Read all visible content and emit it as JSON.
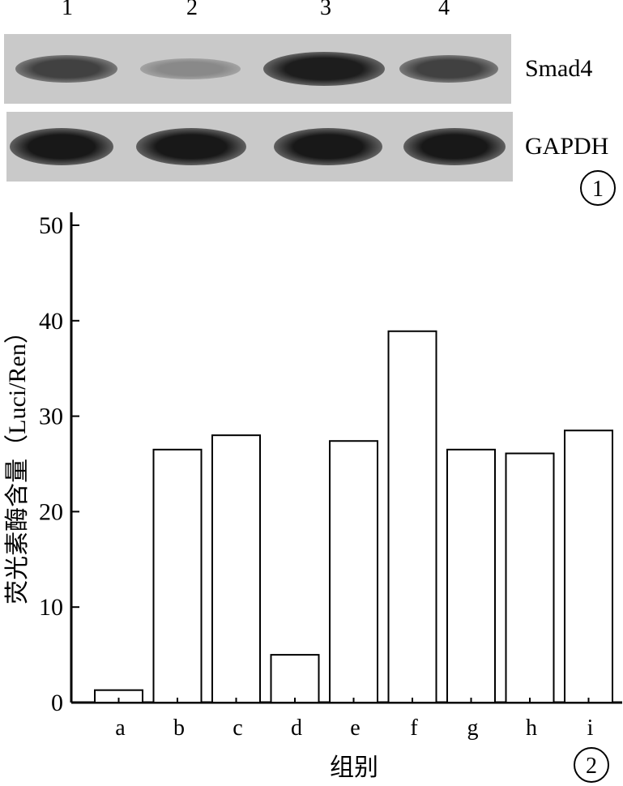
{
  "blot": {
    "lanes": [
      "1",
      "2",
      "3",
      "4"
    ],
    "rows": [
      {
        "label": "Smad4",
        "intensities": [
          0.75,
          0.35,
          0.95,
          0.75
        ]
      },
      {
        "label": "GAPDH",
        "intensities": [
          0.98,
          0.98,
          0.98,
          0.98
        ]
      }
    ],
    "panel_label": "1"
  },
  "chart_data": {
    "type": "bar",
    "categories": [
      "a",
      "b",
      "c",
      "d",
      "e",
      "f",
      "g",
      "h",
      "i"
    ],
    "values": [
      1.3,
      26.5,
      28.0,
      5.0,
      27.4,
      38.9,
      26.5,
      26.1,
      28.5
    ],
    "xlabel": "组别",
    "ylabel": "荧光素酶含量（Luci/Ren）",
    "ylim": [
      0,
      50
    ],
    "yticks": [
      0,
      10,
      20,
      30,
      40,
      50
    ],
    "grid": false,
    "bar_fill": "#ffffff",
    "bar_stroke": "#000000",
    "panel_label": "2"
  }
}
